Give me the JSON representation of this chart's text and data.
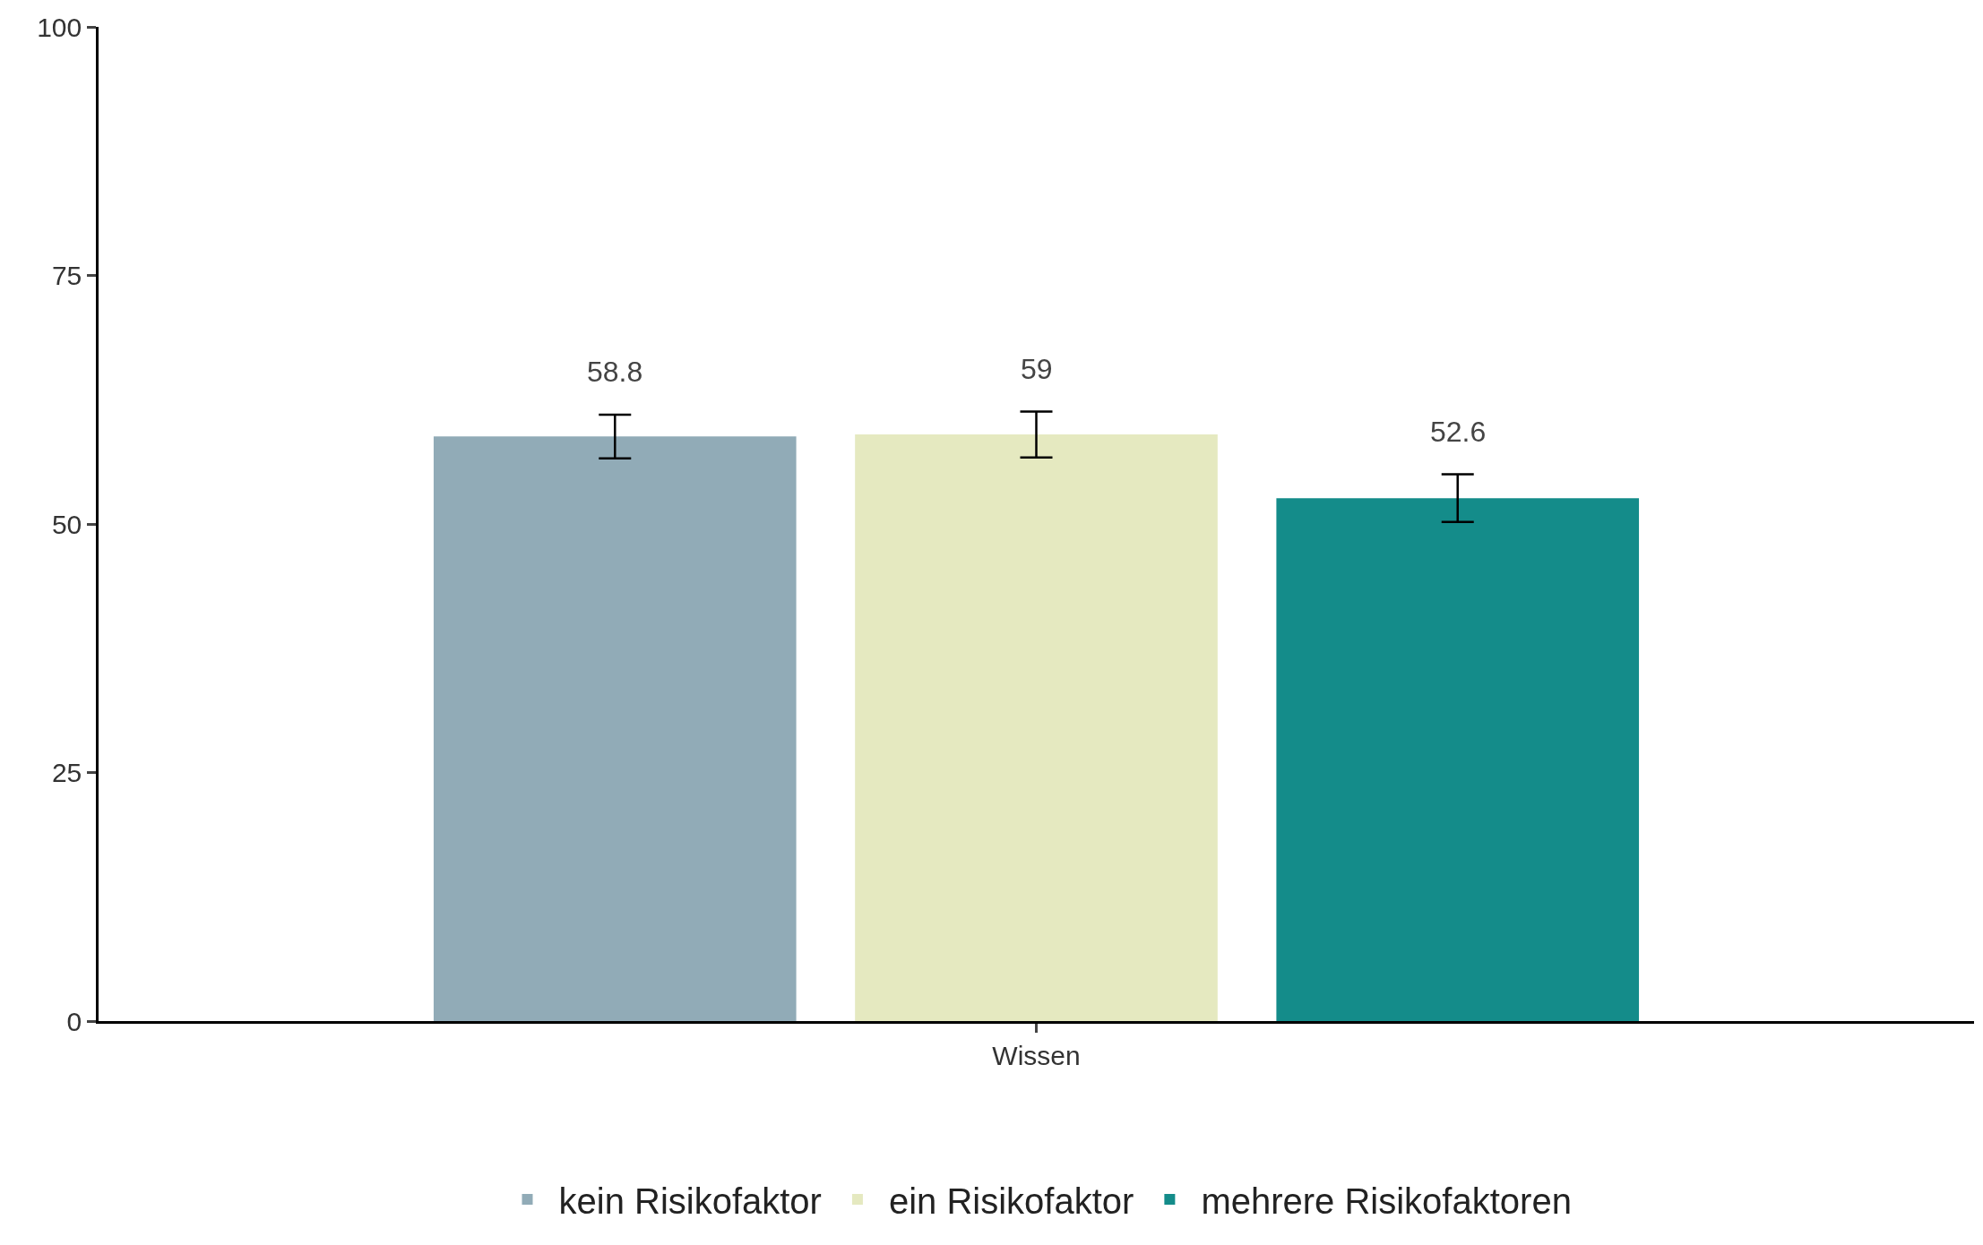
{
  "chart_data": {
    "type": "bar",
    "categories": [
      "Wissen"
    ],
    "series": [
      {
        "name": "kein Risikofaktor",
        "color": "#91abb7",
        "values": [
          58.8
        ],
        "errors": [
          2.2
        ]
      },
      {
        "name": "ein Risikofaktor",
        "color": "#e5e9c0",
        "values": [
          59
        ],
        "errors": [
          2.3
        ]
      },
      {
        "name": "mehrere Risikofaktoren",
        "color": "#148c8a",
        "values": [
          52.6
        ],
        "errors": [
          2.4
        ]
      }
    ],
    "ylim": [
      0,
      100
    ],
    "yticks": [
      0,
      25,
      50,
      75,
      100
    ],
    "legend": "bottom",
    "data_labels": true
  }
}
